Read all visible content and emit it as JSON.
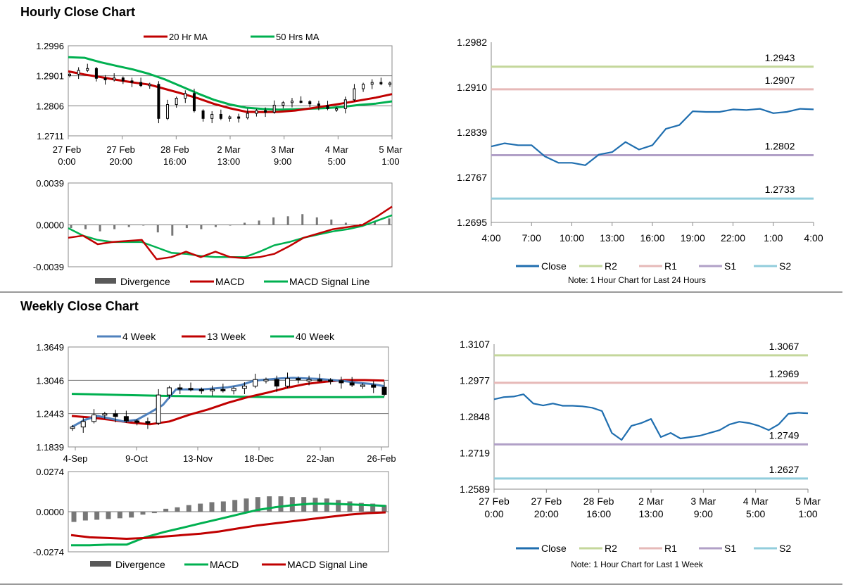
{
  "hourly": {
    "title": "Hourly Close Chart",
    "price": {
      "legend": [
        "20 Hr MA",
        "50 Hrs MA"
      ],
      "yticks": [
        "1.2996",
        "1.2901",
        "1.2806",
        "1.2711"
      ],
      "xticks": [
        [
          "27 Feb",
          "0:00"
        ],
        [
          "27 Feb",
          "20:00"
        ],
        [
          "28 Feb",
          "16:00"
        ],
        [
          "2 Mar",
          "13:00"
        ],
        [
          "3 Mar",
          "9:00"
        ],
        [
          "4 Mar",
          "5:00"
        ],
        [
          "5 Mar",
          "1:00"
        ]
      ]
    },
    "macd": {
      "yticks": [
        "0.0039",
        "0.0000",
        "-0.0039"
      ],
      "legend": [
        "Divergence",
        "MACD",
        "MACD Signal Line"
      ]
    }
  },
  "weekly": {
    "title": "Weekly Close Chart",
    "price": {
      "legend": [
        "4 Week",
        "13 Week",
        "40 Week"
      ],
      "yticks": [
        "1.3649",
        "1.3046",
        "1.2443",
        "1.1839"
      ],
      "xticks": [
        "4-Sep",
        "9-Oct",
        "13-Nov",
        "18-Dec",
        "22-Jan",
        "26-Feb"
      ]
    },
    "macd": {
      "yticks": [
        "0.0274",
        "0.0000",
        "-0.0274"
      ],
      "legend": [
        "Divergence",
        "MACD",
        "MACD Signal Line"
      ]
    }
  },
  "sr_24h": {
    "note": "Note: 1 Hour Chart for Last 24 Hours",
    "legend": [
      "Close",
      "R2",
      "R1",
      "S1",
      "S2"
    ],
    "level_labels": [
      "1.2943",
      "1.2907",
      "1.2802",
      "1.2733"
    ]
  },
  "sr_1w": {
    "note": "Note: 1 Hour Chart for Last 1 Week",
    "legend": [
      "Close",
      "R2",
      "R1",
      "S1",
      "S2"
    ],
    "level_labels": [
      "1.3067",
      "1.2969",
      "1.2749",
      "1.2627"
    ]
  },
  "colors": {
    "close": "#1f6eaf",
    "r2": "#c4d79b",
    "r1": "#e6b9b8",
    "s1": "#b1a0c7",
    "s2": "#92cddc",
    "ma20": "#c00000",
    "ma50": "#00b050",
    "wk4": "#4f81bd",
    "wk13": "#c00000",
    "wk40": "#00b050",
    "macd_red": "#c00000",
    "macd_green": "#00b050",
    "div": "#595959"
  },
  "chart_data": [
    {
      "id": "hourly_price",
      "type": "line",
      "title": "Hourly Close Chart",
      "ylim": [
        1.2711,
        1.2996
      ],
      "x_labels": [
        "27 Feb 0:00",
        "27 Feb 20:00",
        "28 Feb 16:00",
        "2 Mar 13:00",
        "3 Mar 9:00",
        "4 Mar 5:00",
        "5 Mar 1:00"
      ],
      "series": [
        {
          "name": "Price",
          "values": [
            1.2906,
            1.2918,
            1.2924,
            1.2893,
            1.2888,
            1.2894,
            1.2885,
            1.288,
            1.287,
            1.2874,
            1.2766,
            1.281,
            1.283,
            1.2845,
            1.279,
            1.2766,
            1.2779,
            1.2766,
            1.2771,
            1.2768,
            1.2782,
            1.2791,
            1.2786,
            1.2808,
            1.2816,
            1.2821,
            1.2819,
            1.2812,
            1.2807,
            1.2797,
            1.2797,
            1.2825,
            1.286,
            1.2874,
            1.288,
            1.2876,
            1.2878
          ]
        },
        {
          "name": "20 Hr MA",
          "values": [
            1.2915,
            1.2905,
            1.2897,
            1.2888,
            1.288,
            1.2873,
            1.2859,
            1.2845,
            1.283,
            1.2812,
            1.2798,
            1.2787,
            1.2786,
            1.2787,
            1.2791,
            1.2798,
            1.2806,
            1.2814,
            1.2823,
            1.2832,
            1.2843
          ]
        },
        {
          "name": "50 Hrs MA",
          "values": [
            1.296,
            1.2958,
            1.2944,
            1.2932,
            1.2921,
            1.2907,
            1.2889,
            1.2867,
            1.2845,
            1.2825,
            1.281,
            1.28,
            1.2796,
            1.2794,
            1.2795,
            1.2797,
            1.2799,
            1.2803,
            1.2809,
            1.2813,
            1.282
          ]
        }
      ]
    },
    {
      "id": "hourly_macd",
      "type": "line",
      "ylim": [
        -0.0039,
        0.0039
      ],
      "series": [
        {
          "name": "MACD",
          "values": [
            -0.0012,
            -0.001,
            -0.0018,
            -0.0016,
            -0.0015,
            -0.0014,
            -0.0032,
            -0.003,
            -0.0025,
            -0.003,
            -0.0025,
            -0.003,
            -0.0031,
            -0.003,
            -0.0027,
            -0.002,
            -0.0012,
            -0.0008,
            -0.0004,
            -0.0002,
            0.0,
            0.0008,
            0.0017
          ]
        },
        {
          "name": "MACD Signal Line",
          "values": [
            -0.0003,
            -0.001,
            -0.0014,
            -0.0016,
            -0.0016,
            -0.0016,
            -0.0021,
            -0.0026,
            -0.0027,
            -0.0029,
            -0.003,
            -0.003,
            -0.003,
            -0.0025,
            -0.0019,
            -0.0016,
            -0.0012,
            -0.0009,
            -0.0006,
            -0.0004,
            -0.0001,
            0.0004,
            0.0009
          ]
        },
        {
          "name": "Divergence",
          "values": [
            -0.0003,
            -0.0004,
            -0.0006,
            -0.0004,
            -0.0002,
            0.0,
            -0.0007,
            -0.001,
            -0.0003,
            -0.0004,
            -0.0002,
            0.0,
            0.0002,
            0.0004,
            0.0007,
            0.0008,
            0.001,
            0.0007,
            0.0005,
            0.0002,
            0.0001,
            0.0003,
            0.0006
          ]
        }
      ]
    },
    {
      "id": "weekly_price",
      "type": "line",
      "title": "Weekly Close Chart",
      "ylim": [
        1.1839,
        1.3649
      ],
      "x_labels": [
        "4-Sep",
        "9-Oct",
        "13-Nov",
        "18-Dec",
        "22-Jan",
        "26-Feb"
      ],
      "series": [
        {
          "name": "Price",
          "values": [
            1.22,
            1.23,
            1.242,
            1.244,
            1.239,
            1.231,
            1.23,
            1.227,
            1.278,
            1.291,
            1.29,
            1.288,
            1.287,
            1.288,
            1.286,
            1.29,
            1.294,
            1.306,
            1.306,
            1.294,
            1.308,
            1.306,
            1.306,
            1.305,
            1.304,
            1.3,
            1.296,
            1.296,
            1.292,
            1.279
          ]
        },
        {
          "name": "4 Week",
          "values": [
            1.22,
            1.233,
            1.24,
            1.235,
            1.23,
            1.233,
            1.246,
            1.26,
            1.288,
            1.288,
            1.288,
            1.29,
            1.292,
            1.296,
            1.304,
            1.306,
            1.308,
            1.309,
            1.308,
            1.307,
            1.305,
            1.303,
            1.3,
            1.298,
            1.294
          ]
        },
        {
          "name": "13 Week",
          "values": [
            1.24,
            1.237,
            1.233,
            1.228,
            1.225,
            1.23,
            1.242,
            1.252,
            1.264,
            1.274,
            1.282,
            1.291,
            1.298,
            1.302,
            1.305,
            1.305,
            1.304
          ]
        },
        {
          "name": "40 Week",
          "values": [
            1.28,
            1.279,
            1.278,
            1.277,
            1.276,
            1.2755,
            1.275,
            1.2745,
            1.274,
            1.274,
            1.274,
            1.274,
            1.2745
          ]
        }
      ]
    },
    {
      "id": "weekly_macd",
      "type": "line",
      "ylim": [
        -0.0274,
        0.0274
      ],
      "series": [
        {
          "name": "MACD",
          "values": [
            -0.023,
            -0.023,
            -0.0225,
            -0.0225,
            -0.0175,
            -0.014,
            -0.011,
            -0.008,
            -0.005,
            -0.002,
            0.001,
            0.003,
            0.0045,
            0.0055,
            0.0055,
            0.005,
            0.0045,
            0.004
          ]
        },
        {
          "name": "MACD Signal Line",
          "values": [
            -0.016,
            -0.0175,
            -0.018,
            -0.0185,
            -0.018,
            -0.017,
            -0.016,
            -0.015,
            -0.0135,
            -0.0115,
            -0.0095,
            -0.008,
            -0.0065,
            -0.005,
            -0.0035,
            -0.002,
            -0.001,
            -0.0005
          ]
        },
        {
          "name": "Divergence",
          "values": [
            -0.007,
            -0.006,
            -0.0055,
            -0.005,
            -0.0045,
            -0.004,
            -0.002,
            -0.001,
            0.002,
            0.003,
            0.0045,
            0.0055,
            0.0065,
            0.007,
            0.008,
            0.009,
            0.01,
            0.0105,
            0.0105,
            0.01,
            0.01,
            0.0095,
            0.009,
            0.008,
            0.007,
            0.006,
            0.0055,
            0.0045
          ]
        }
      ]
    },
    {
      "id": "sr_24h",
      "type": "line",
      "ylim": [
        1.2695,
        1.2982
      ],
      "yticks": [
        "1.2982",
        "1.2910",
        "1.2839",
        "1.2767",
        "1.2695"
      ],
      "x_labels": [
        "4:00",
        "7:00",
        "10:00",
        "13:00",
        "16:00",
        "19:00",
        "22:00",
        "1:00",
        "4:00"
      ],
      "series": [
        {
          "name": "Close",
          "values": [
            1.2816,
            1.2821,
            1.2818,
            1.2818,
            1.28,
            1.279,
            1.279,
            1.2786,
            1.2803,
            1.2807,
            1.2823,
            1.2811,
            1.2818,
            1.2844,
            1.285,
            1.2872,
            1.2871,
            1.2871,
            1.2875,
            1.2874,
            1.2876,
            1.2869,
            1.2871,
            1.2876,
            1.2875
          ]
        },
        {
          "name": "R2",
          "values": [
            1.2943
          ]
        },
        {
          "name": "R1",
          "values": [
            1.2907
          ]
        },
        {
          "name": "S1",
          "values": [
            1.2802
          ]
        },
        {
          "name": "S2",
          "values": [
            1.2733
          ]
        }
      ]
    },
    {
      "id": "sr_1w",
      "type": "line",
      "ylim": [
        1.2589,
        1.3107
      ],
      "yticks": [
        "1.3107",
        "1.2977",
        "1.2848",
        "1.2719",
        "1.2589"
      ],
      "x_labels": [
        "27 Feb 0:00",
        "27 Feb 20:00",
        "28 Feb 16:00",
        "2 Mar 13:00",
        "3 Mar 9:00",
        "4 Mar 5:00",
        "5 Mar 1:00"
      ],
      "series": [
        {
          "name": "Close",
          "values": [
            1.291,
            1.2918,
            1.292,
            1.2928,
            1.2895,
            1.2888,
            1.2895,
            1.2887,
            1.2887,
            1.2885,
            1.288,
            1.2868,
            1.279,
            1.2765,
            1.2815,
            1.2825,
            1.284,
            1.2775,
            1.279,
            1.277,
            1.2775,
            1.278,
            1.279,
            1.28,
            1.282,
            1.283,
            1.2825,
            1.2815,
            1.28,
            1.282,
            1.2858,
            1.2862,
            1.286
          ]
        },
        {
          "name": "R2",
          "values": [
            1.3067
          ]
        },
        {
          "name": "R1",
          "values": [
            1.2969
          ]
        },
        {
          "name": "S1",
          "values": [
            1.2749
          ]
        },
        {
          "name": "S2",
          "values": [
            1.2627
          ]
        }
      ]
    }
  ]
}
